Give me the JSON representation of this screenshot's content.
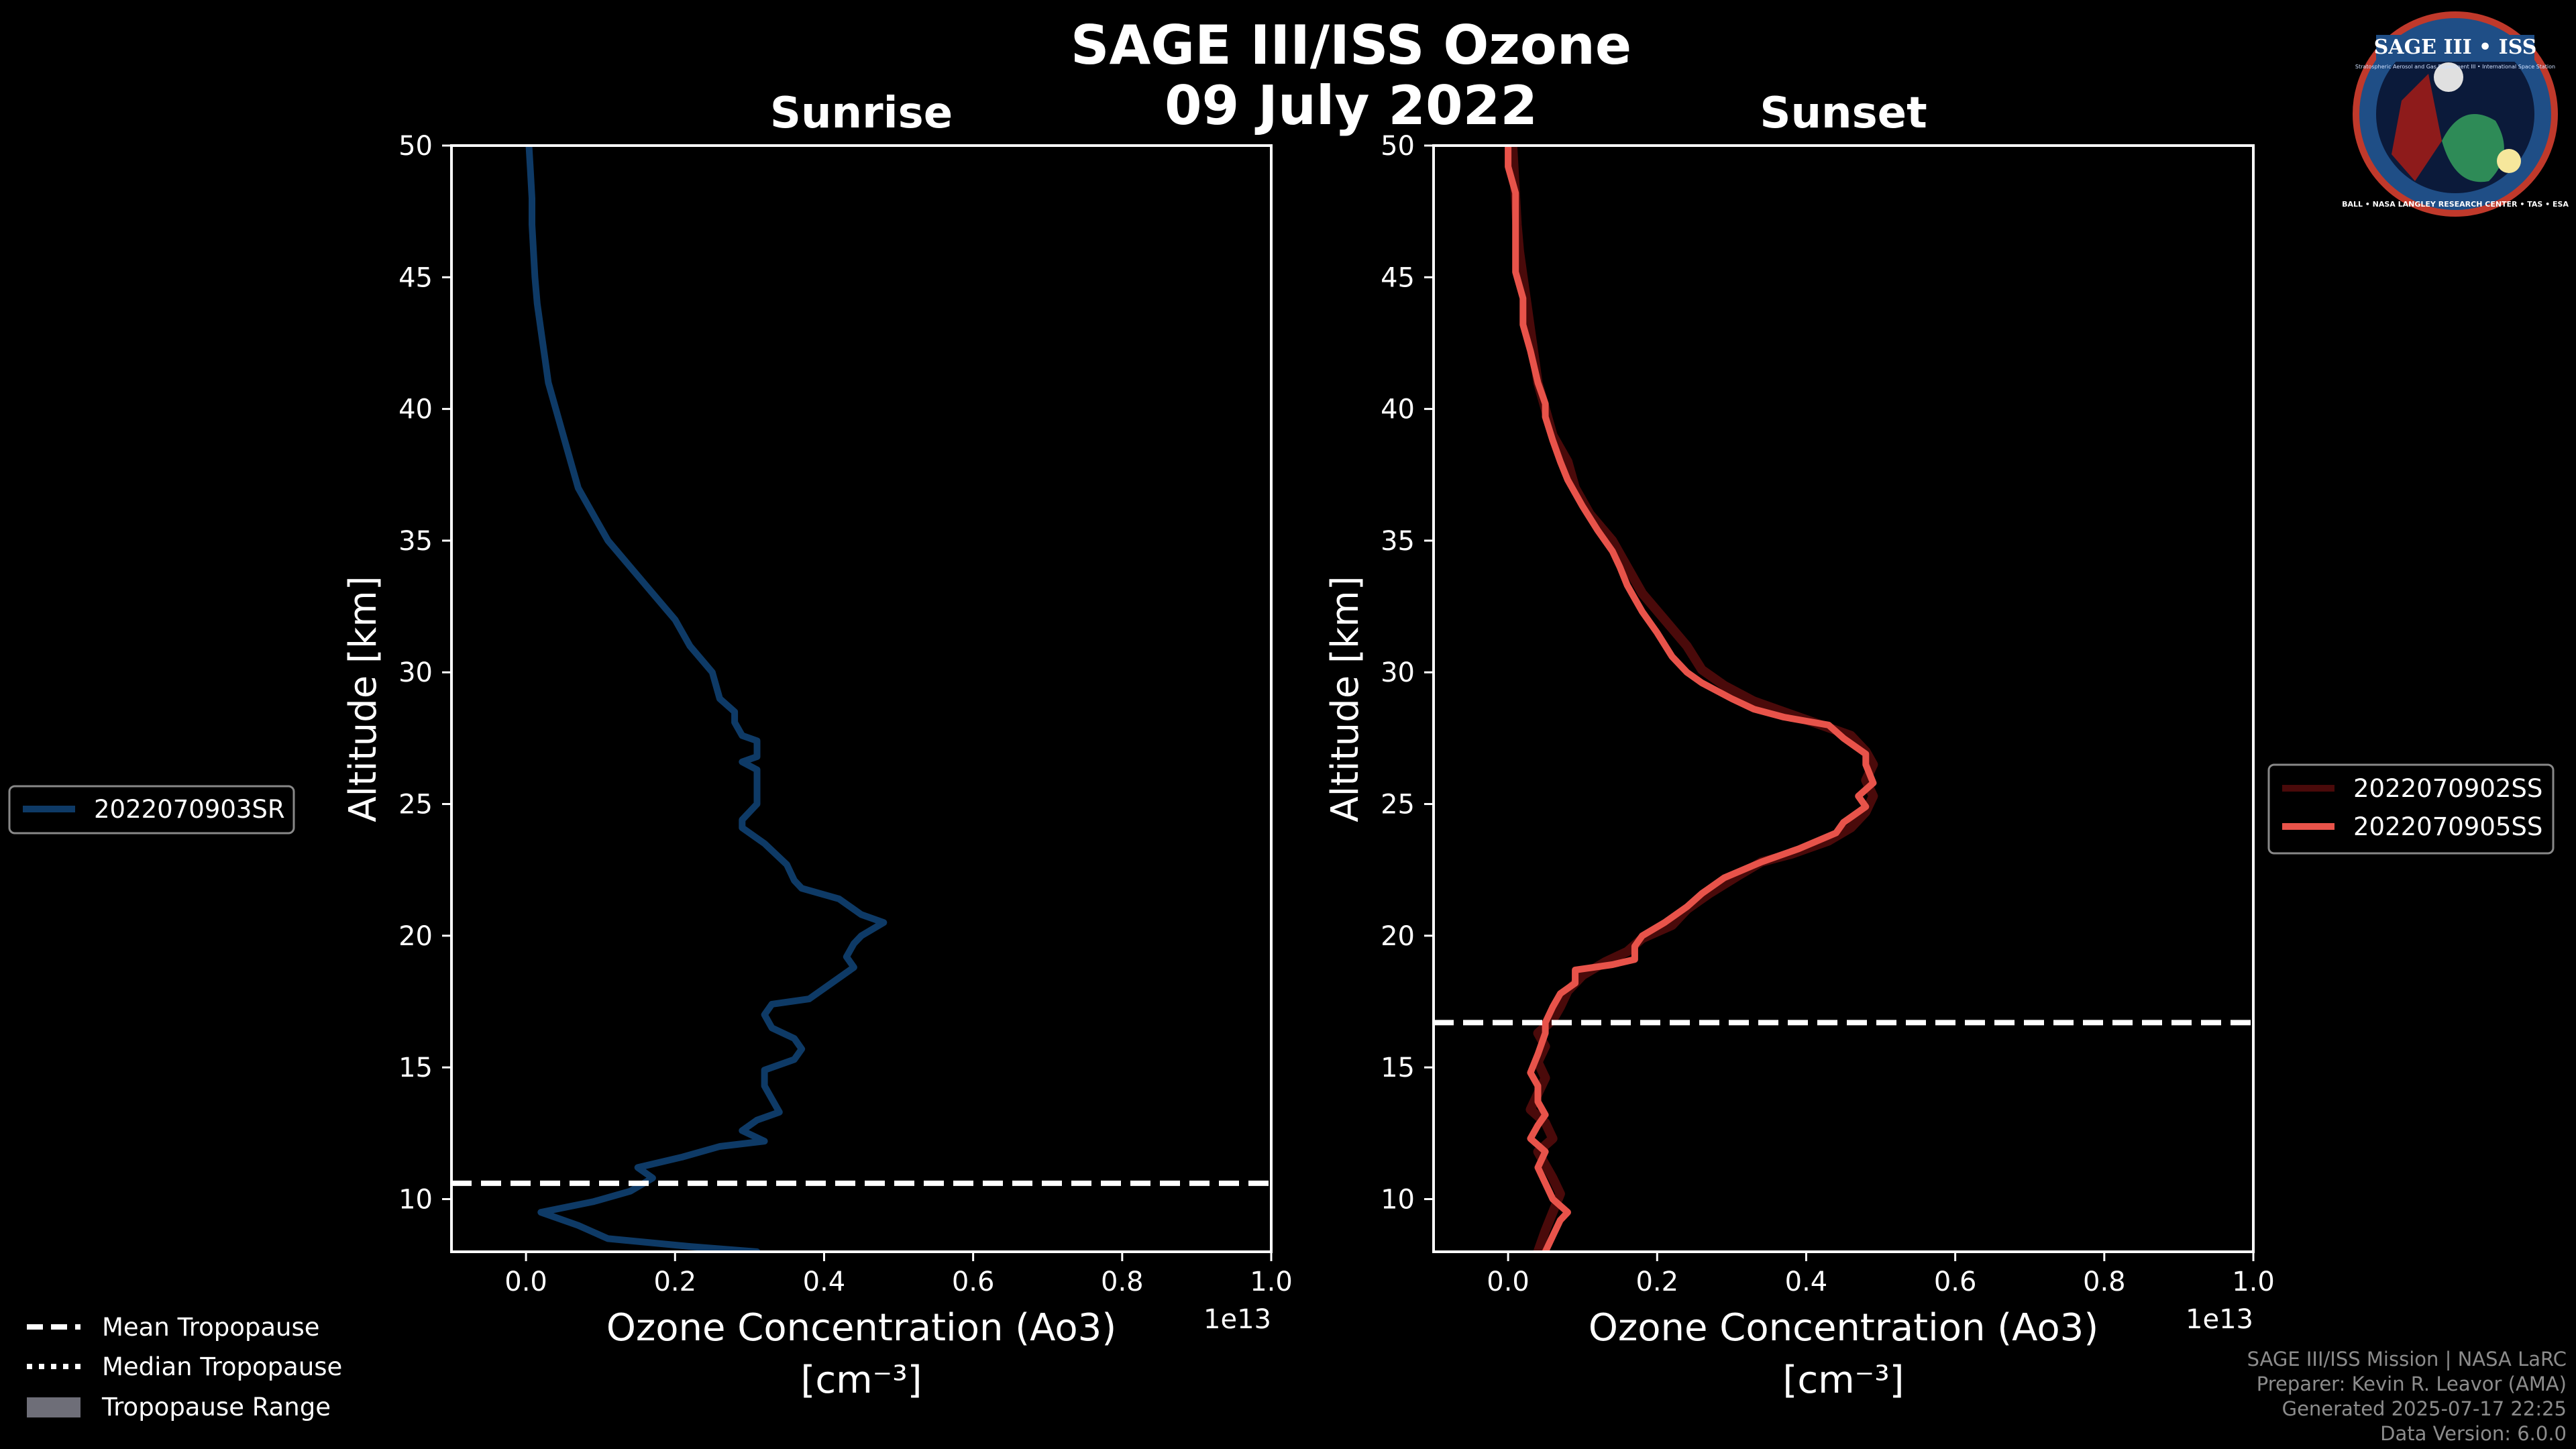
{
  "title_line1": "SAGE III/ISS Ozone",
  "title_line2": "09 July 2022",
  "logo": {
    "text_top": "SAGE III • ISS",
    "text_sub": "Stratospheric Aerosol and Gas Experiment III • International Space Station",
    "text_ring": "BALL • NASA LANGLEY RESEARCH CENTER • TAS • ESA"
  },
  "left_legend": {
    "entries": [
      "2022070903SR"
    ]
  },
  "right_legend": {
    "entries": [
      "2022070902SS",
      "2022070905SS"
    ]
  },
  "tropopause_legend": {
    "mean": "Mean Tropopause",
    "median": "Median Tropopause",
    "range": "Tropopause Range"
  },
  "footer": {
    "line1": "SAGE III/ISS Mission | NASA LaRC",
    "line2": "Preparer: Kevin R. Leavor (AMA)",
    "line3": "Generated 2025-07-17 22:25",
    "line4": "Data Version: 6.0.0"
  },
  "chart_data": [
    {
      "type": "line",
      "title": "Sunrise",
      "xlabel": "Ozone Concentration (Ao3)",
      "xlabel_unit": "[cm⁻³]",
      "ylabel": "Altitude [km]",
      "x_scale_label": "1e13",
      "xlim": [
        -0.1,
        1.0
      ],
      "ylim": [
        8,
        50
      ],
      "xticks": [
        0.0,
        0.2,
        0.4,
        0.6,
        0.8,
        1.0
      ],
      "xtick_labels": [
        "0.0",
        "0.2",
        "0.4",
        "0.6",
        "0.8",
        "1.0"
      ],
      "yticks": [
        10,
        15,
        20,
        25,
        30,
        35,
        40,
        45,
        50
      ],
      "ytick_labels": [
        "10",
        "15",
        "20",
        "25",
        "30",
        "35",
        "40",
        "45",
        "50"
      ],
      "mean_tropopause": 10.6,
      "series": [
        {
          "name": "2022070903SR",
          "color": "#0e3a66",
          "points": [
            [
              0.31,
              8.0
            ],
            [
              0.22,
              8.2
            ],
            [
              0.11,
              8.5
            ],
            [
              0.07,
              9.0
            ],
            [
              0.02,
              9.5
            ],
            [
              0.09,
              9.9
            ],
            [
              0.14,
              10.3
            ],
            [
              0.17,
              10.8
            ],
            [
              0.15,
              11.2
            ],
            [
              0.21,
              11.6
            ],
            [
              0.26,
              12.0
            ],
            [
              0.32,
              12.2
            ],
            [
              0.29,
              12.6
            ],
            [
              0.31,
              13.0
            ],
            [
              0.34,
              13.3
            ],
            [
              0.33,
              13.8
            ],
            [
              0.32,
              14.3
            ],
            [
              0.32,
              14.9
            ],
            [
              0.36,
              15.3
            ],
            [
              0.37,
              15.7
            ],
            [
              0.36,
              16.1
            ],
            [
              0.33,
              16.5
            ],
            [
              0.32,
              17.0
            ],
            [
              0.33,
              17.4
            ],
            [
              0.38,
              17.6
            ],
            [
              0.41,
              18.2
            ],
            [
              0.44,
              18.8
            ],
            [
              0.43,
              19.2
            ],
            [
              0.44,
              19.7
            ],
            [
              0.45,
              20.0
            ],
            [
              0.48,
              20.5
            ],
            [
              0.45,
              20.8
            ],
            [
              0.42,
              21.4
            ],
            [
              0.37,
              21.8
            ],
            [
              0.36,
              22.1
            ],
            [
              0.35,
              22.7
            ],
            [
              0.32,
              23.5
            ],
            [
              0.29,
              24.1
            ],
            [
              0.29,
              24.4
            ],
            [
              0.31,
              25.0
            ],
            [
              0.31,
              25.6
            ],
            [
              0.31,
              26.3
            ],
            [
              0.29,
              26.6
            ],
            [
              0.31,
              26.8
            ],
            [
              0.31,
              27.4
            ],
            [
              0.29,
              27.6
            ],
            [
              0.28,
              28.1
            ],
            [
              0.28,
              28.5
            ],
            [
              0.26,
              29.0
            ],
            [
              0.25,
              30.0
            ],
            [
              0.22,
              31.0
            ],
            [
              0.2,
              32.0
            ],
            [
              0.17,
              33.0
            ],
            [
              0.14,
              34.0
            ],
            [
              0.11,
              35.0
            ],
            [
              0.09,
              36.0
            ],
            [
              0.07,
              37.0
            ],
            [
              0.06,
              38.0
            ],
            [
              0.05,
              39.0
            ],
            [
              0.04,
              40.0
            ],
            [
              0.03,
              41.0
            ],
            [
              0.025,
              42.0
            ],
            [
              0.02,
              43.0
            ],
            [
              0.015,
              44.0
            ],
            [
              0.012,
              45.0
            ],
            [
              0.01,
              46.0
            ],
            [
              0.008,
              47.0
            ],
            [
              0.008,
              48.0
            ],
            [
              0.006,
              49.0
            ],
            [
              0.004,
              50.0
            ]
          ]
        }
      ]
    },
    {
      "type": "line",
      "title": "Sunset",
      "xlabel": "Ozone Concentration (Ao3)",
      "xlabel_unit": "[cm⁻³]",
      "ylabel": "Altitude [km]",
      "x_scale_label": "1e13",
      "xlim": [
        -0.1,
        1.0
      ],
      "ylim": [
        8,
        50
      ],
      "xticks": [
        0.0,
        0.2,
        0.4,
        0.6,
        0.8,
        1.0
      ],
      "xtick_labels": [
        "0.0",
        "0.2",
        "0.4",
        "0.6",
        "0.8",
        "1.0"
      ],
      "yticks": [
        10,
        15,
        20,
        25,
        30,
        35,
        40,
        45,
        50
      ],
      "ytick_labels": [
        "10",
        "15",
        "20",
        "25",
        "30",
        "35",
        "40",
        "45",
        "50"
      ],
      "mean_tropopause": 16.7,
      "series": [
        {
          "name": "2022070902SS",
          "color": "#4a0a0a",
          "points": [
            [
              0.04,
              8.0
            ],
            [
              0.05,
              8.8
            ],
            [
              0.06,
              9.5
            ],
            [
              0.07,
              10.2
            ],
            [
              0.06,
              10.8
            ],
            [
              0.05,
              11.3
            ],
            [
              0.04,
              11.8
            ],
            [
              0.06,
              12.3
            ],
            [
              0.05,
              12.9
            ],
            [
              0.03,
              13.4
            ],
            [
              0.04,
              14.0
            ],
            [
              0.05,
              14.6
            ],
            [
              0.04,
              15.2
            ],
            [
              0.05,
              15.8
            ],
            [
              0.04,
              16.3
            ],
            [
              0.06,
              16.8
            ],
            [
              0.07,
              17.3
            ],
            [
              0.08,
              17.9
            ],
            [
              0.1,
              18.5
            ],
            [
              0.13,
              19.0
            ],
            [
              0.16,
              19.4
            ],
            [
              0.18,
              19.9
            ],
            [
              0.22,
              20.4
            ],
            [
              0.24,
              21.0
            ],
            [
              0.27,
              21.6
            ],
            [
              0.31,
              22.3
            ],
            [
              0.34,
              22.8
            ],
            [
              0.38,
              23.1
            ],
            [
              0.43,
              23.6
            ],
            [
              0.46,
              24.1
            ],
            [
              0.48,
              24.7
            ],
            [
              0.49,
              25.3
            ],
            [
              0.48,
              25.9
            ],
            [
              0.49,
              26.5
            ],
            [
              0.48,
              27.0
            ],
            [
              0.46,
              27.6
            ],
            [
              0.4,
              28.2
            ],
            [
              0.33,
              28.9
            ],
            [
              0.29,
              29.5
            ],
            [
              0.26,
              30.1
            ],
            [
              0.24,
              31.0
            ],
            [
              0.21,
              32.0
            ],
            [
              0.18,
              33.0
            ],
            [
              0.16,
              34.0
            ],
            [
              0.14,
              35.0
            ],
            [
              0.11,
              36.0
            ],
            [
              0.09,
              37.0
            ],
            [
              0.08,
              38.0
            ],
            [
              0.06,
              39.0
            ],
            [
              0.05,
              40.0
            ],
            [
              0.04,
              41.0
            ],
            [
              0.035,
              42.0
            ],
            [
              0.03,
              43.0
            ],
            [
              0.025,
              44.0
            ],
            [
              0.02,
              45.0
            ],
            [
              0.015,
              46.0
            ],
            [
              0.012,
              47.0
            ],
            [
              0.01,
              48.0
            ],
            [
              0.008,
              49.0
            ],
            [
              0.006,
              50.0
            ]
          ]
        },
        {
          "name": "2022070905SS",
          "color": "#e8534a",
          "points": [
            [
              0.05,
              8.0
            ],
            [
              0.06,
              8.6
            ],
            [
              0.07,
              9.2
            ],
            [
              0.08,
              9.5
            ],
            [
              0.06,
              10.0
            ],
            [
              0.05,
              10.6
            ],
            [
              0.04,
              11.2
            ],
            [
              0.05,
              11.8
            ],
            [
              0.03,
              12.3
            ],
            [
              0.04,
              12.8
            ],
            [
              0.05,
              13.2
            ],
            [
              0.04,
              13.7
            ],
            [
              0.04,
              14.3
            ],
            [
              0.03,
              14.8
            ],
            [
              0.04,
              15.5
            ],
            [
              0.05,
              16.3
            ],
            [
              0.05,
              16.7
            ],
            [
              0.06,
              17.3
            ],
            [
              0.07,
              17.8
            ],
            [
              0.09,
              18.2
            ],
            [
              0.09,
              18.7
            ],
            [
              0.14,
              18.9
            ],
            [
              0.17,
              19.1
            ],
            [
              0.17,
              19.6
            ],
            [
              0.18,
              20.0
            ],
            [
              0.21,
              20.5
            ],
            [
              0.24,
              21.1
            ],
            [
              0.26,
              21.6
            ],
            [
              0.29,
              22.2
            ],
            [
              0.34,
              22.8
            ],
            [
              0.39,
              23.3
            ],
            [
              0.44,
              23.9
            ],
            [
              0.45,
              24.3
            ],
            [
              0.48,
              24.9
            ],
            [
              0.47,
              25.3
            ],
            [
              0.49,
              25.8
            ],
            [
              0.48,
              26.5
            ],
            [
              0.48,
              26.9
            ],
            [
              0.45,
              27.5
            ],
            [
              0.43,
              28.0
            ],
            [
              0.37,
              28.3
            ],
            [
              0.33,
              28.6
            ],
            [
              0.3,
              29.0
            ],
            [
              0.26,
              29.6
            ],
            [
              0.24,
              30.0
            ],
            [
              0.22,
              30.6
            ],
            [
              0.2,
              31.5
            ],
            [
              0.18,
              32.3
            ],
            [
              0.17,
              32.8
            ],
            [
              0.16,
              33.3
            ],
            [
              0.15,
              34.0
            ],
            [
              0.14,
              34.6
            ],
            [
              0.12,
              35.4
            ],
            [
              0.1,
              36.3
            ],
            [
              0.08,
              37.3
            ],
            [
              0.07,
              38.0
            ],
            [
              0.06,
              38.8
            ],
            [
              0.05,
              39.7
            ],
            [
              0.05,
              40.2
            ],
            [
              0.04,
              41.0
            ],
            [
              0.03,
              42.2
            ],
            [
              0.02,
              43.2
            ],
            [
              0.02,
              44.2
            ],
            [
              0.01,
              45.2
            ],
            [
              0.01,
              46.2
            ],
            [
              0.01,
              47.2
            ],
            [
              0.01,
              48.2
            ],
            [
              0.0,
              49.2
            ],
            [
              0.0,
              50.0
            ]
          ]
        }
      ]
    }
  ]
}
